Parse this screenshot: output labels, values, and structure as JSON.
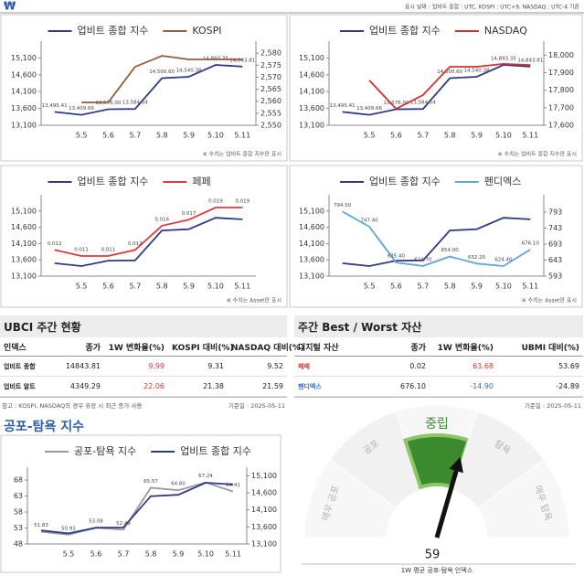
{
  "header": {
    "logo": "₩",
    "date_note": "표시 날짜 : 업비트 종합 : UTC, KOSPI : UTC+9, NASDAQ : UTC-4 기준"
  },
  "section_title": "공포-탐욕 지수",
  "chart_data": [
    {
      "type": "line",
      "note": "※ 수치는 업비트 종합 지수만 표시",
      "categories": [
        null,
        "5.5",
        "5.6",
        "5.7",
        "5.8",
        "5.9",
        "5.10",
        "5.11"
      ],
      "series": [
        {
          "name": "업비트 종합 지수",
          "color": "#2f3b85",
          "values": [
            13495.41,
            13409.66,
            13576.0,
            13584.54,
            14500.6,
            14540.38,
            14893.35,
            14843.81
          ],
          "value_labels": [
            "13,495.41",
            "13,409.66",
            "13,576.00",
            "13,584.54",
            "14,500.60",
            "14,540.38",
            "14,893.35",
            "14,843.81"
          ]
        },
        {
          "name": "KOSPI",
          "color": "#9a5a3c",
          "axis": "y2",
          "values": [
            null,
            2559.5,
            2559.5,
            2574.3,
            2578.9,
            2577.4,
            2577.4,
            2577.4
          ]
        }
      ],
      "ylim": [
        13100,
        15600
      ],
      "yticks": [
        {
          "value": 13100,
          "label": "13,100"
        },
        {
          "value": 13600,
          "label": "13,600"
        },
        {
          "value": 14100,
          "label": "14,100"
        },
        {
          "value": 14600,
          "label": "14,600"
        },
        {
          "value": 15100,
          "label": "15,100"
        }
      ],
      "y2lim": [
        2550,
        2585
      ],
      "y2ticks": [
        {
          "value": 2550,
          "label": "2,550"
        },
        {
          "value": 2555,
          "label": "2,555"
        },
        {
          "value": 2560,
          "label": "2,560"
        },
        {
          "value": 2565,
          "label": "2,565"
        },
        {
          "value": 2570,
          "label": "2,570"
        },
        {
          "value": 2575,
          "label": "2,575"
        },
        {
          "value": 2580,
          "label": "2,580"
        }
      ]
    },
    {
      "type": "line",
      "note": "※ 수치는 업비트 종합 지수만 표시",
      "categories": [
        null,
        "5.5",
        "5.6",
        "5.7",
        "5.8",
        "5.9",
        "5.10",
        "5.11"
      ],
      "series": [
        {
          "name": "업비트 종합 지수",
          "color": "#2f3b85",
          "values": [
            13495.41,
            13409.66,
            13576.0,
            13584.54,
            14500.6,
            14540.38,
            14893.35,
            14843.81
          ],
          "value_labels": [
            "13,495.41",
            "13,409.66",
            "13,576.00",
            "13,584.54",
            "14,500.60",
            "14,540.38",
            "14,893.35",
            "14,843.81"
          ]
        },
        {
          "name": "NASDAQ",
          "color": "#d23232",
          "axis": "y2",
          "values": [
            null,
            17856,
            17694,
            17772,
            17934,
            17934,
            17950,
            17944
          ]
        }
      ],
      "ylim": [
        13100,
        15600
      ],
      "yticks": [
        {
          "value": 13100,
          "label": "13,100"
        },
        {
          "value": 13600,
          "label": "13,600"
        },
        {
          "value": 14100,
          "label": "14,100"
        },
        {
          "value": 14600,
          "label": "14,600"
        },
        {
          "value": 15100,
          "label": "15,100"
        }
      ],
      "y2lim": [
        17600,
        18080
      ],
      "y2ticks": [
        {
          "value": 17600,
          "label": "17,600"
        },
        {
          "value": 17700,
          "label": "17,700"
        },
        {
          "value": 17800,
          "label": "17,800"
        },
        {
          "value": 17900,
          "label": "17,900"
        },
        {
          "value": 18000,
          "label": "18,000"
        }
      ]
    },
    {
      "type": "line",
      "note": "※ 수치는 Asset만 표시",
      "categories": [
        null,
        "5.5",
        "5.6",
        "5.7",
        "5.8",
        "5.9",
        "5.10",
        "5.11"
      ],
      "series": [
        {
          "name": "업비트 종합 지수",
          "color": "#2f3b85",
          "values": [
            13495.41,
            13409.66,
            13576.0,
            13584.54,
            14500.6,
            14540.38,
            14893.35,
            14843.81
          ]
        },
        {
          "name": "페페",
          "color": "#e03a3a",
          "axis": "y2",
          "values": [
            0.012,
            0.011,
            0.011,
            0.012,
            0.016,
            0.017,
            0.019,
            0.019
          ]
        }
      ],
      "ylim": [
        13100,
        15600
      ],
      "yticks": [
        {
          "value": 13100,
          "label": "13,100"
        },
        {
          "value": 13600,
          "label": "13,600"
        },
        {
          "value": 14100,
          "label": "14,100"
        },
        {
          "value": 14600,
          "label": "14,600"
        },
        {
          "value": 15100,
          "label": "15,100"
        }
      ]
    },
    {
      "type": "line",
      "note": "※ 수치는 Asset만 표시",
      "categories": [
        null,
        "5.5",
        "5.6",
        "5.7",
        "5.8",
        "5.9",
        "5.10",
        "5.11"
      ],
      "series": [
        {
          "name": "업비트 종합 지수",
          "color": "#2f3b85",
          "values": [
            13495.41,
            13409.66,
            13576.0,
            13584.54,
            14500.6,
            14540.38,
            14893.35,
            14843.81
          ]
        },
        {
          "name": "펜디엑스",
          "color": "#5ea6dc",
          "axis": "y2",
          "values": [
            794.5,
            747.4,
            635.4,
            624.7,
            654.0,
            632.2,
            624.4,
            676.1
          ],
          "value_labels": [
            "794.50",
            "747.40",
            "635.40",
            "624.70",
            "654.00",
            "632.20",
            "624.40",
            "676.10"
          ]
        }
      ],
      "ylim": [
        13100,
        15600
      ],
      "yticks": [
        {
          "value": 13100,
          "label": "13,100"
        },
        {
          "value": 13600,
          "label": "13,600"
        },
        {
          "value": 14100,
          "label": "14,100"
        },
        {
          "value": 14600,
          "label": "14,600"
        },
        {
          "value": 15100,
          "label": "15,100"
        }
      ],
      "y2lim": [
        593,
        847
      ],
      "y2ticks": [
        593,
        643,
        693,
        743,
        793
      ]
    },
    {
      "type": "line",
      "categories": [
        null,
        "5.5",
        "5.6",
        "5.7",
        "5.8",
        "5.9",
        "5.10",
        "5.11"
      ],
      "series": [
        {
          "name": "공포-탐욕 지수",
          "color": "#9a9a9a",
          "values": [
            51.83,
            50.91,
            53.08,
            52.49,
            65.57,
            64.8,
            67.24,
            64.41
          ],
          "value_labels": [
            "51.83",
            "50.91",
            "53.08",
            "52.49",
            "65.57",
            "64.80",
            "67.24",
            "64.41"
          ]
        },
        {
          "name": "업비트 종합 지수",
          "color": "#2f3b85",
          "axis": "y2",
          "values": [
            13495.41,
            13409.66,
            13576.0,
            13584.54,
            14500.6,
            14540.38,
            14893.35,
            14843.81
          ]
        }
      ],
      "ylim": [
        48,
        72
      ],
      "yticks": [
        48,
        53,
        58,
        63,
        68
      ],
      "y2lim": [
        13100,
        15350
      ],
      "y2ticks": [
        {
          "value": 13100,
          "label": "13,100"
        },
        {
          "value": 13600,
          "label": "13,600"
        },
        {
          "value": 14100,
          "label": "14,100"
        },
        {
          "value": 14600,
          "label": "14,600"
        },
        {
          "value": 15100,
          "label": "15,100"
        }
      ]
    },
    {
      "type": "gauge",
      "zones": [
        "매우 공포",
        "공포",
        "중립",
        "탐욕",
        "매우 탐욕"
      ],
      "highlight_zone": 2,
      "color": "#3c8a2e",
      "value": 59,
      "range": [
        0,
        100
      ],
      "caption": "1W 평균 공포-탐욕 인덱스"
    }
  ],
  "tables": [
    {
      "title": "UBCI 주간 현황",
      "columns": [
        "인덱스",
        "종가",
        "1W 변화율(%)",
        "KOSPI 대비(%)",
        "NASDAQ 대비(%)"
      ],
      "rows": [
        [
          "업비트 종합",
          "14843.81",
          "9.99",
          "9.31",
          "9.52"
        ],
        [
          "업비트 알트",
          "4349.29",
          "22.06",
          "21.38",
          "21.59"
        ]
      ],
      "cell_colors": [
        [
          null,
          null,
          "#e03030",
          null,
          null
        ],
        [
          null,
          null,
          "#e03030",
          null,
          null
        ]
      ],
      "footnote_left": "참고 : KOSPI, NASDAQ의 경우 휴장 시 최근 종가 사용",
      "footnote_right": "기준일 : 2025-05-11"
    },
    {
      "title": "주간 Best / Worst 자산",
      "columns": [
        "디지털 자산",
        "종가",
        "1W 변화율(%)",
        "UBMI 대비(%)"
      ],
      "rows": [
        [
          "페페",
          "0.02",
          "63.68",
          "53.69"
        ],
        [
          "펜디엑스",
          "676.10",
          "-14.90",
          "-24.89"
        ]
      ],
      "cell_colors": [
        [
          "#e03030",
          null,
          "#e03030",
          null
        ],
        [
          "#2f6fd0",
          null,
          "#2f6fd0",
          null
        ]
      ],
      "footnote_right": "기준일 : 2025-05-11"
    }
  ]
}
